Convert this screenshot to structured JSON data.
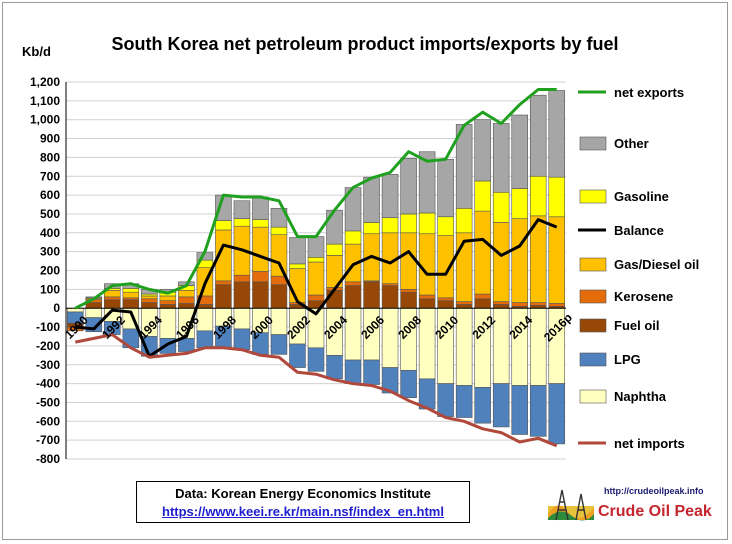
{
  "title": "South Korea net petroleum product imports/exports  by fuel",
  "y_unit": "Kb/d",
  "source": {
    "text": "Data:  Korean Energy Economics Institute",
    "url": "https://www.keei.re.kr/main.nsf/index_en.html"
  },
  "logo": {
    "url": "http://crudeoilpeak.info",
    "name": "Crude Oil Peak"
  },
  "colors": {
    "Other": "#a6a6a6",
    "Gasoline": "#ffff00",
    "Gas/Diesel oil": "#ffc000",
    "Kerosene": "#e46c0a",
    "Fuel oil": "#974706",
    "LPG": "#4f81bd",
    "Naphtha": "#ffffc0",
    "net exports": "#1fa01f",
    "Balance": "#000000",
    "net imports": "#b0483c"
  },
  "chart_data": {
    "type": "bar",
    "stacked": true,
    "ylim": [
      -800,
      1200
    ],
    "ystep": 100,
    "ytick_labels": [
      "-800",
      "-700",
      "-600",
      "-500",
      "-400",
      "-300",
      "-200",
      "-100",
      "0",
      "100",
      "200",
      "300",
      "400",
      "500",
      "600",
      "700",
      "800",
      "900",
      "1,000",
      "1,100",
      "1,200"
    ],
    "x": [
      "1990",
      "1991",
      "1992",
      "1993",
      "1994",
      "1995",
      "1996",
      "1997",
      "1998",
      "1999",
      "2000",
      "2001",
      "2002",
      "2003",
      "2004",
      "2005",
      "2006",
      "2007",
      "2008",
      "2009",
      "2010",
      "2011",
      "2012",
      "2013",
      "2014",
      "2015",
      "2016p"
    ],
    "x_tick_labels": [
      "1990",
      "1992",
      "1994",
      "1996",
      "1998",
      "2000",
      "2002",
      "2004",
      "2006",
      "2008",
      "2010",
      "2012",
      "2014",
      "2016p"
    ],
    "legend": [
      "net exports",
      "Other",
      "Gasoline",
      "Balance",
      "Gas/Diesel oil",
      "Kerosene",
      "Fuel oil",
      "LPG",
      "Naphtha",
      "net imports"
    ],
    "series": [
      {
        "name": "Naphtha",
        "kind": "bar",
        "values": [
          -20,
          -50,
          -70,
          -110,
          -150,
          -160,
          -160,
          -120,
          -95,
          -110,
          -130,
          -140,
          -190,
          -210,
          -250,
          -275,
          -275,
          -315,
          -330,
          -375,
          -400,
          -410,
          -420,
          -400,
          -410,
          -410,
          -400
        ]
      },
      {
        "name": "LPG",
        "kind": "bar",
        "values": [
          -60,
          -75,
          -70,
          -100,
          -105,
          -80,
          -70,
          -90,
          -115,
          -110,
          -115,
          -105,
          -125,
          -125,
          -125,
          -125,
          -130,
          -135,
          -145,
          -160,
          -175,
          -170,
          -190,
          -230,
          -260,
          -270,
          -320
        ]
      },
      {
        "name": "Fuel oil",
        "kind": "bar",
        "values": [
          -20,
          30,
          45,
          45,
          30,
          20,
          25,
          20,
          125,
          140,
          140,
          125,
          20,
          40,
          95,
          120,
          140,
          120,
          85,
          50,
          40,
          20,
          50,
          20,
          10,
          15,
          10
        ]
      },
      {
        "name": "Kerosene",
        "kind": "bar",
        "values": [
          -20,
          15,
          15,
          10,
          20,
          20,
          35,
          45,
          20,
          35,
          55,
          45,
          10,
          30,
          15,
          20,
          5,
          10,
          15,
          20,
          15,
          15,
          25,
          15,
          20,
          15,
          15
        ]
      },
      {
        "name": "Gas/Diesel oil",
        "kind": "bar",
        "values": [
          0,
          5,
          35,
          30,
          15,
          25,
          35,
          150,
          270,
          260,
          235,
          220,
          180,
          175,
          170,
          200,
          250,
          270,
          300,
          325,
          330,
          365,
          440,
          420,
          445,
          460,
          460
        ]
      },
      {
        "name": "Gasoline",
        "kind": "bar",
        "values": [
          0,
          5,
          10,
          20,
          10,
          20,
          25,
          40,
          50,
          40,
          40,
          40,
          25,
          25,
          60,
          70,
          60,
          80,
          100,
          110,
          100,
          130,
          160,
          160,
          160,
          210,
          210
        ]
      },
      {
        "name": "Other",
        "kind": "bar",
        "values": [
          0,
          5,
          25,
          25,
          25,
          15,
          20,
          40,
          135,
          95,
          120,
          100,
          140,
          110,
          180,
          230,
          240,
          230,
          295,
          325,
          305,
          445,
          325,
          365,
          390,
          430,
          460
        ]
      },
      {
        "name": "net exports",
        "kind": "line",
        "values": [
          0,
          50,
          120,
          130,
          100,
          80,
          120,
          300,
          600,
          590,
          590,
          570,
          380,
          380,
          520,
          640,
          690,
          720,
          830,
          780,
          790,
          970,
          1040,
          980,
          1080,
          1160,
          1160
        ]
      },
      {
        "name": "Balance",
        "kind": "line",
        "values": [
          -100,
          -110,
          -10,
          -20,
          -255,
          -190,
          -150,
          130,
          335,
          310,
          275,
          240,
          35,
          -30,
          100,
          230,
          275,
          240,
          300,
          180,
          180,
          355,
          365,
          280,
          330,
          470,
          430
        ]
      },
      {
        "name": "net imports",
        "kind": "line",
        "values": [
          -180,
          -160,
          -140,
          -210,
          -260,
          -250,
          -240,
          -210,
          -210,
          -220,
          -250,
          -260,
          -340,
          -350,
          -380,
          -400,
          -410,
          -440,
          -490,
          -530,
          -580,
          -600,
          -640,
          -660,
          -710,
          -690,
          -730
        ]
      }
    ]
  }
}
